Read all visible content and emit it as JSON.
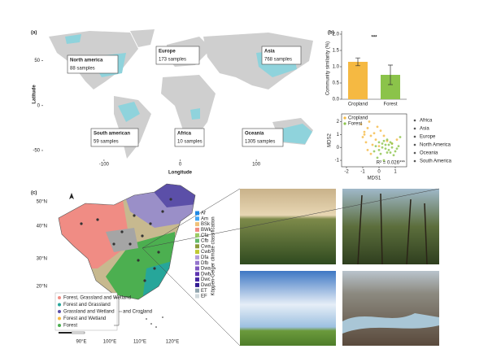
{
  "figure": {
    "panel_labels": [
      "(a)",
      "(b)",
      "(c)"
    ]
  },
  "chart_data": [
    {
      "type": "map",
      "xlabel": "Longitude",
      "ylabel": "Latitude",
      "xlim": [
        -180,
        180
      ],
      "ylim": [
        -60,
        85
      ],
      "xticks": [
        -100,
        0,
        100
      ],
      "yticks": [
        -50,
        0,
        50
      ],
      "annotations": [
        {
          "region": "North america",
          "samples": "88 samples"
        },
        {
          "region": "Europe",
          "samples": "173 samples"
        },
        {
          "region": "Asia",
          "samples": "768 samples"
        },
        {
          "region": "South american",
          "samples": "59 samples"
        },
        {
          "region": "Africa",
          "samples": "10 samples"
        },
        {
          "region": "Oceania",
          "samples": "1305 samples"
        }
      ]
    },
    {
      "type": "bar",
      "ylabel": "Community similarity (%)",
      "categories": [
        "Cropland",
        "Forest"
      ],
      "values": [
        1.15,
        0.75
      ],
      "errors": [
        0.12,
        0.3
      ],
      "colors": [
        "#f5b942",
        "#8bc34a"
      ],
      "ylim": [
        0,
        2.1
      ],
      "yticks": [
        {
          "value": 0,
          "label": "0.0"
        },
        {
          "value": 0.5,
          "label": "0.5"
        },
        {
          "value": 1,
          "label": "1.0"
        },
        {
          "value": 1.5,
          "label": "1.5"
        },
        {
          "value": 2,
          "label": "2.0"
        }
      ],
      "annotation": "***"
    },
    {
      "type": "scatter",
      "xlabel": "MDS1",
      "ylabel": "MDS2",
      "xlim": [
        -2.3,
        1.7
      ],
      "ylim": [
        -1.5,
        2.6
      ],
      "xticks": [
        -2,
        -1,
        0,
        1
      ],
      "yticks": [
        -1,
        0,
        1,
        2
      ],
      "series": [
        {
          "name": "Cropland",
          "color": "#f5b942",
          "x": [
            -1.1,
            -0.9,
            -0.7,
            -0.5,
            -0.3,
            -0.8,
            -0.6,
            -0.2,
            0.1,
            -1.0,
            -0.4,
            0.3,
            -0.7,
            0.5,
            -0.1,
            0.8,
            -0.5,
            0.0,
            1.1,
            -0.9
          ],
          "y": [
            1.8,
            1.2,
            1.5,
            0.9,
            1.1,
            0.4,
            2.0,
            0.6,
            1.3,
            0.8,
            0.2,
            0.9,
            -0.2,
            0.5,
            1.6,
            0.3,
            -0.5,
            0.1,
            0.6,
            1.0
          ]
        },
        {
          "name": "Forest",
          "color": "#8bc34a",
          "x": [
            -0.2,
            0.0,
            0.2,
            0.4,
            0.6,
            0.8,
            1.0,
            1.2,
            0.1,
            0.3,
            0.5,
            0.7,
            0.9,
            -0.1,
            0.2,
            0.4,
            0.6,
            0.8,
            1.1,
            0.3,
            0.0,
            0.5,
            0.7,
            -0.3,
            1.3
          ],
          "y": [
            0.1,
            -0.2,
            0.3,
            -0.1,
            0.2,
            0.0,
            -0.3,
            0.1,
            -0.5,
            0.5,
            -0.4,
            0.4,
            -0.6,
            -0.8,
            0.0,
            0.2,
            -0.2,
            0.3,
            -0.1,
            -1.0,
            0.4,
            0.6,
            -0.4,
            -0.3,
            0.8
          ]
        }
      ],
      "annotation": "R² = 0.026***",
      "region_legend": [
        "Africa",
        "Asia",
        "Europe",
        "North America",
        "Oceania",
        "South America"
      ]
    }
  ],
  "panel_c": {
    "lat_labels": [
      "50°N",
      "40°N",
      "30°N",
      "20°N"
    ],
    "lon_labels": [
      "90°E",
      "100°E",
      "110°E",
      "120°E"
    ],
    "climate_title": "Köppen-Geiger climate classification",
    "climate_classes": [
      "Af",
      "Am",
      "BSk",
      "BWk",
      "Cfa",
      "Cfb",
      "Cwa",
      "Cwb",
      "Dfa",
      "Dfb",
      "Dwa",
      "Dwb",
      "Dwc",
      "Dwd",
      "ET",
      "EF"
    ],
    "land_use": [
      "Forest, Grassland and Wetland",
      "Forest and Grassland",
      "Grassland and Wetland",
      "Forest and Wetland",
      "Forest"
    ],
    "land_use_suffix": "and Cropland"
  }
}
